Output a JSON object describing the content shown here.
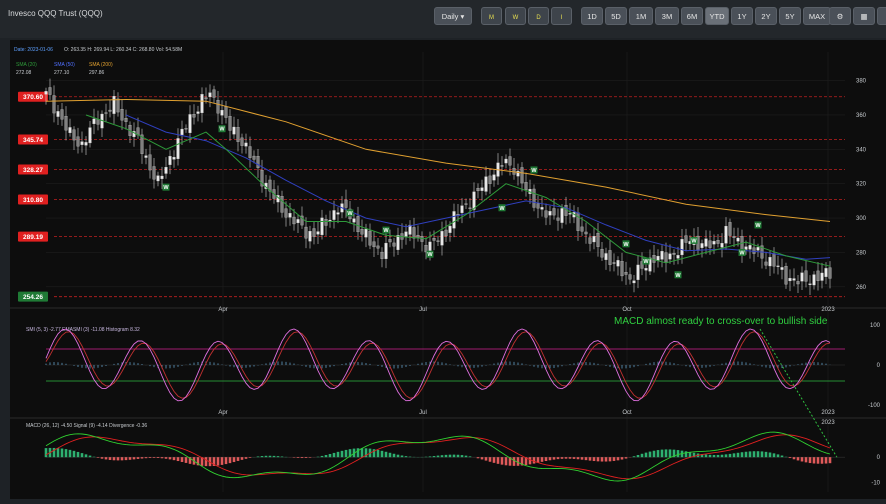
{
  "header": {
    "title": "Invesco QQQ Trust (QQQ)",
    "interval": "Daily",
    "period_buttons": [
      "1D",
      "5D",
      "1M",
      "3M",
      "6M",
      "YTD",
      "1Y",
      "2Y",
      "5Y",
      "MAX"
    ],
    "active_period": "YTD",
    "freq_buttons": [
      "M",
      "W",
      "D",
      "I"
    ]
  },
  "chart_data": [
    {
      "type": "candlestick",
      "info": "Date: 2023-01-06",
      "info_values": "O: 263.35 H: 269.94 L: 260.34 C: 268.80 Vol: 54.58M",
      "legend": [
        {
          "name": "SMA (20)",
          "value": "272.08",
          "color": "#2e9a3a"
        },
        {
          "name": "SMA (50)",
          "value": "277.10",
          "color": "#3040c0"
        },
        {
          "name": "SMA (200)",
          "value": "297.86",
          "color": "#e0a030"
        }
      ],
      "y_ticks": [
        260,
        280,
        300,
        320,
        340,
        360,
        380
      ],
      "ylim": [
        250,
        385
      ],
      "x_ticks": [
        "Apr",
        "Jul",
        "Oct",
        "2023"
      ],
      "levels": [
        "370.60",
        "345.74",
        "328.27",
        "310.80",
        "289.19",
        "254.26"
      ],
      "level_values": [
        370.6,
        345.74,
        328.27,
        310.8,
        289.19,
        254.26
      ],
      "close_path": [
        [
          0,
          372
        ],
        [
          3,
          362
        ],
        [
          6,
          348
        ],
        [
          9,
          343
        ],
        [
          13,
          358
        ],
        [
          17,
          366
        ],
        [
          20,
          355
        ],
        [
          23,
          345
        ],
        [
          26,
          330
        ],
        [
          28,
          320
        ],
        [
          32,
          340
        ],
        [
          36,
          358
        ],
        [
          39,
          368
        ],
        [
          41,
          372
        ],
        [
          43,
          366
        ],
        [
          46,
          352
        ],
        [
          49,
          345
        ],
        [
          52,
          332
        ],
        [
          56,
          315
        ],
        [
          60,
          303
        ],
        [
          64,
          294
        ],
        [
          67,
          290
        ],
        [
          70,
          298
        ],
        [
          73,
          306
        ],
        [
          76,
          303
        ],
        [
          78,
          294
        ],
        [
          81,
          286
        ],
        [
          84,
          280
        ],
        [
          87,
          286
        ],
        [
          90,
          293
        ],
        [
          93,
          288
        ],
        [
          96,
          283
        ],
        [
          99,
          290
        ],
        [
          102,
          300
        ],
        [
          105,
          308
        ],
        [
          108,
          315
        ],
        [
          111,
          324
        ],
        [
          114,
          332
        ],
        [
          117,
          330
        ],
        [
          120,
          316
        ],
        [
          123,
          307
        ],
        [
          126,
          300
        ],
        [
          129,
          304
        ],
        [
          131,
          302
        ],
        [
          134,
          293
        ],
        [
          137,
          285
        ],
        [
          140,
          278
        ],
        [
          143,
          271
        ],
        [
          146,
          265
        ],
        [
          149,
          270
        ],
        [
          152,
          278
        ],
        [
          155,
          276
        ],
        [
          158,
          282
        ],
        [
          161,
          287
        ],
        [
          164,
          285
        ],
        [
          167,
          284
        ],
        [
          170,
          292
        ],
        [
          173,
          286
        ],
        [
          176,
          282
        ],
        [
          179,
          278
        ],
        [
          182,
          273
        ],
        [
          185,
          266
        ],
        [
          188,
          263
        ],
        [
          191,
          265
        ],
        [
          194,
          266
        ],
        [
          196,
          268.8
        ]
      ],
      "sma20": [
        [
          10,
          360
        ],
        [
          20,
          352
        ],
        [
          30,
          340
        ],
        [
          40,
          350
        ],
        [
          45,
          340
        ],
        [
          55,
          318
        ],
        [
          65,
          298
        ],
        [
          75,
          298
        ],
        [
          85,
          290
        ],
        [
          95,
          288
        ],
        [
          105,
          302
        ],
        [
          115,
          320
        ],
        [
          125,
          312
        ],
        [
          135,
          298
        ],
        [
          145,
          280
        ],
        [
          155,
          274
        ],
        [
          165,
          280
        ],
        [
          175,
          286
        ],
        [
          185,
          278
        ],
        [
          196,
          272
        ]
      ],
      "sma50": [
        [
          20,
          360
        ],
        [
          30,
          350
        ],
        [
          40,
          345
        ],
        [
          50,
          335
        ],
        [
          60,
          322
        ],
        [
          70,
          310
        ],
        [
          80,
          300
        ],
        [
          90,
          295
        ],
        [
          100,
          300
        ],
        [
          110,
          305
        ],
        [
          120,
          310
        ],
        [
          130,
          306
        ],
        [
          140,
          296
        ],
        [
          150,
          287
        ],
        [
          160,
          281
        ],
        [
          170,
          282
        ],
        [
          180,
          280
        ],
        [
          190,
          276
        ],
        [
          196,
          277
        ]
      ],
      "sma200": [
        [
          0,
          368
        ],
        [
          20,
          369
        ],
        [
          40,
          368
        ],
        [
          60,
          356
        ],
        [
          80,
          340
        ],
        [
          100,
          332
        ],
        [
          120,
          326
        ],
        [
          140,
          318
        ],
        [
          160,
          308
        ],
        [
          180,
          302
        ],
        [
          196,
          298
        ]
      ],
      "markers": [
        {
          "label": "W",
          "x": 30,
          "y": 318
        },
        {
          "label": "W",
          "x": 44,
          "y": 352
        },
        {
          "label": "W",
          "x": 76,
          "y": 303
        },
        {
          "label": "W",
          "x": 85,
          "y": 293
        },
        {
          "label": "W",
          "x": 96,
          "y": 279
        },
        {
          "label": "W",
          "x": 114,
          "y": 306
        },
        {
          "label": "W",
          "x": 122,
          "y": 328
        },
        {
          "label": "W",
          "x": 145,
          "y": 285
        },
        {
          "label": "W",
          "x": 150,
          "y": 275
        },
        {
          "label": "W",
          "x": 158,
          "y": 267
        },
        {
          "label": "W",
          "x": 162,
          "y": 287
        },
        {
          "label": "W",
          "x": 174,
          "y": 280
        },
        {
          "label": "W",
          "x": 178,
          "y": 296
        }
      ],
      "annotation": "MACD  almost ready to  cross-over to bullish side"
    },
    {
      "type": "line",
      "label": "SMI (5, 3) -2.77 EMASMI (3) -11.08 Histogram 8.32",
      "y_ticks": [
        100,
        0,
        -100
      ],
      "ylim": [
        -100,
        100
      ],
      "x_ticks": [
        "Apr",
        "Jul",
        "Oct",
        "2023"
      ],
      "levels": [
        40,
        -40
      ]
    },
    {
      "type": "line",
      "label": "MACD (26, 12) -4.50 Signal (9) -4.14 Divergence -0.36",
      "y_ticks": [
        0,
        -10
      ],
      "ylim": [
        -15,
        10
      ],
      "x_ticks": [
        "2023"
      ]
    }
  ]
}
